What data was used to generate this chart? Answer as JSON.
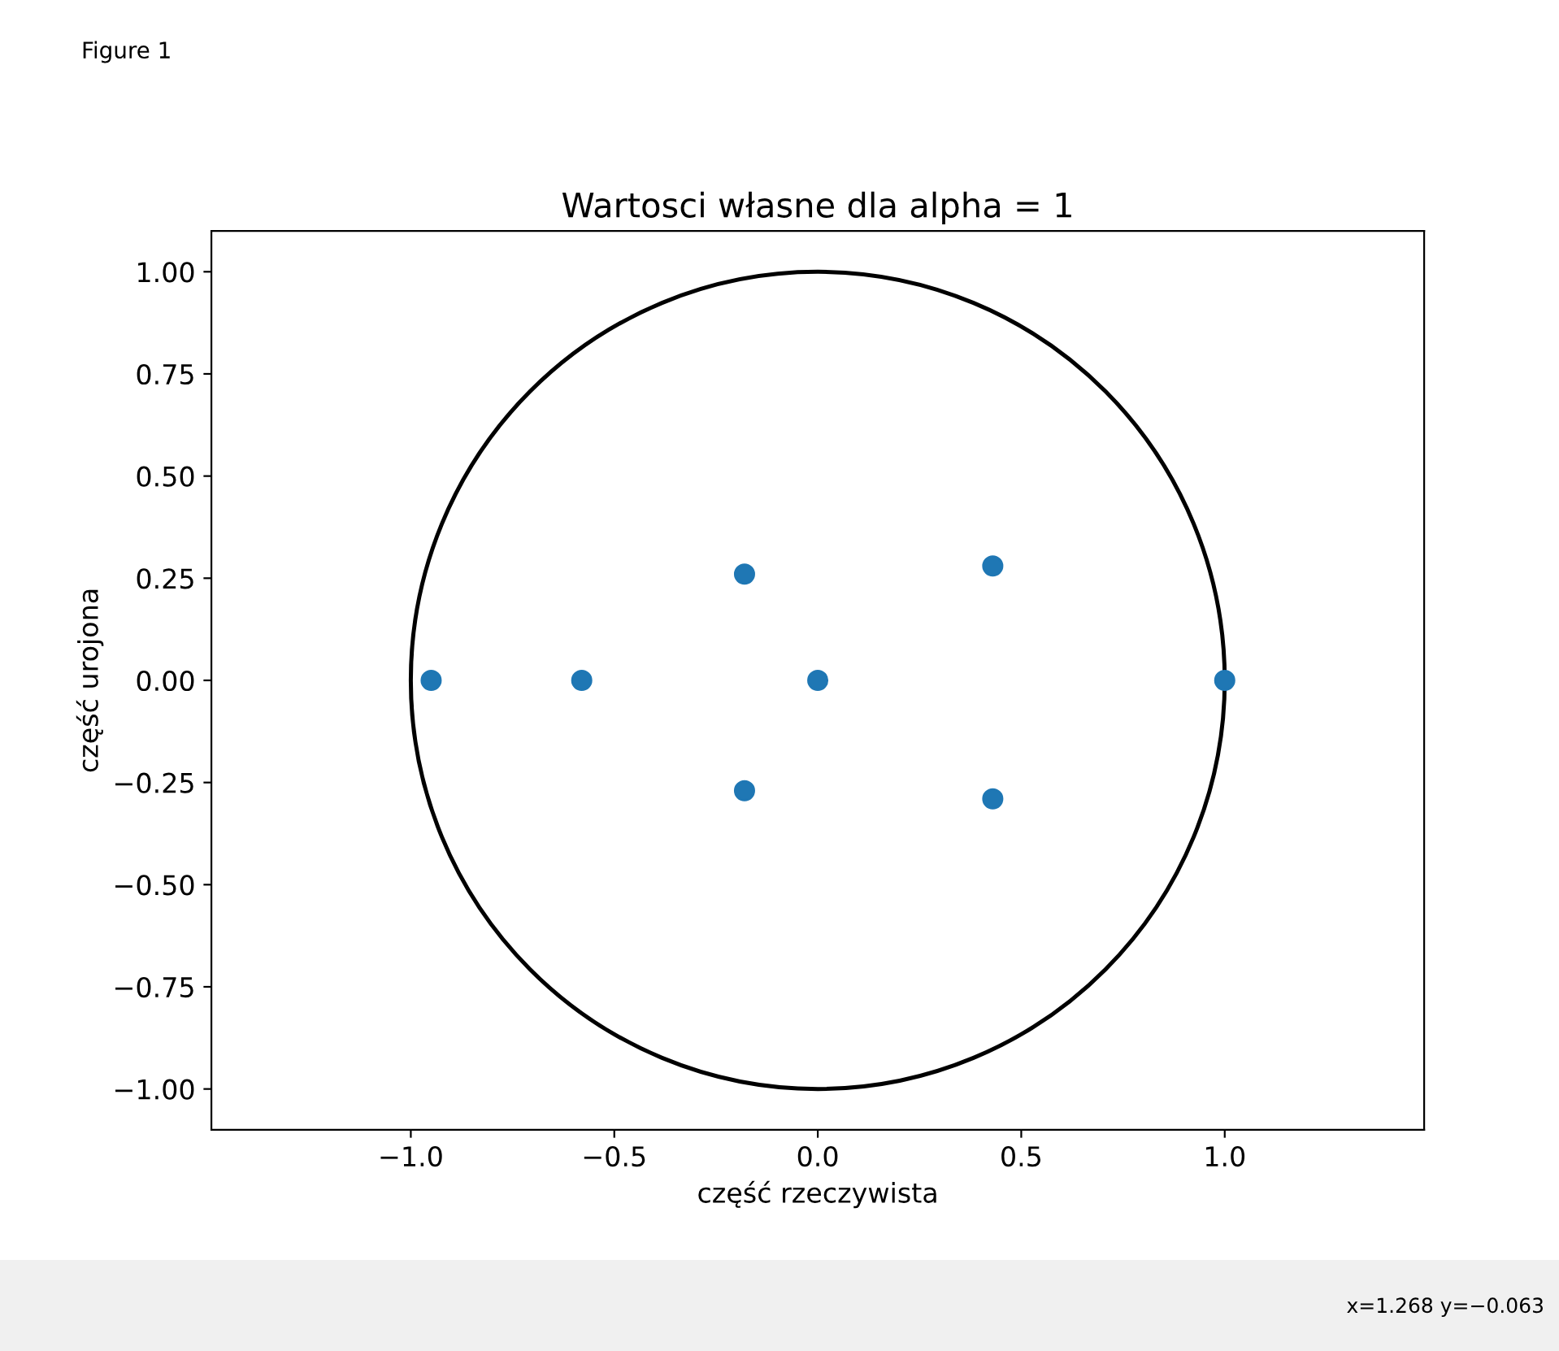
{
  "chart_data": {
    "type": "scatter",
    "title": "Wartosci własne dla alpha = 1",
    "xlabel": "część rzeczywista",
    "ylabel": "część urojona",
    "xlim": [
      -1.49,
      1.49
    ],
    "ylim": [
      -1.1,
      1.1
    ],
    "xticks": [
      {
        "value": -1.0,
        "label": "−1.0"
      },
      {
        "value": -0.5,
        "label": "−0.5"
      },
      {
        "value": 0.0,
        "label": "0.0"
      },
      {
        "value": 0.5,
        "label": "0.5"
      },
      {
        "value": 1.0,
        "label": "1.0"
      }
    ],
    "yticks": [
      {
        "value": -1.0,
        "label": "−1.00"
      },
      {
        "value": -0.75,
        "label": "−0.75"
      },
      {
        "value": -0.5,
        "label": "−0.50"
      },
      {
        "value": -0.25,
        "label": "−0.25"
      },
      {
        "value": 0.0,
        "label": "0.00"
      },
      {
        "value": 0.25,
        "label": "0.25"
      },
      {
        "value": 0.5,
        "label": "0.50"
      },
      {
        "value": 0.75,
        "label": "0.75"
      },
      {
        "value": 1.0,
        "label": "1.00"
      }
    ],
    "grid": false,
    "marker": "circle",
    "color": "#1f77b4",
    "x": [
      -0.95,
      -0.58,
      -0.18,
      -0.18,
      0.0,
      0.43,
      0.43,
      1.0
    ],
    "values": [
      0.0,
      0.0,
      0.26,
      -0.27,
      0.0,
      0.28,
      -0.29,
      0.0
    ],
    "annotations": [
      "Figure 1",
      "x=1.268 y=−0.063"
    ]
  }
}
